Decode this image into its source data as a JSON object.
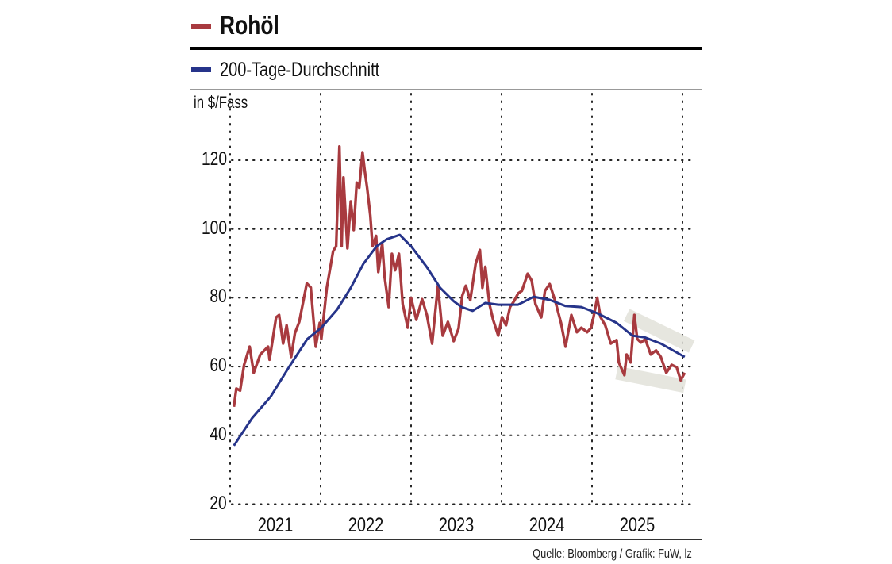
{
  "chart_data": {
    "type": "line",
    "title": "Rohöl",
    "ylabel": "in $/Fass",
    "ylim": [
      20,
      130
    ],
    "yticks": [
      20,
      40,
      60,
      80,
      100,
      120
    ],
    "xticks": [
      "2021",
      "2022",
      "2023",
      "2024",
      "2025"
    ],
    "grid": true,
    "grid_style": "dotted",
    "legend_position": "top-left",
    "source": "Quelle: Bloomberg / Grafik: FuW, lz",
    "colors": {
      "price": "#a83a3f",
      "ma": "#26348a",
      "band": "#e2e2da"
    },
    "series": [
      {
        "name": "Rohöl",
        "points": [
          [
            "2021-01-16",
            48.3
          ],
          [
            "2021-01-26",
            53.6
          ],
          [
            "2021-02-11",
            53
          ],
          [
            "2021-02-27",
            60.5
          ],
          [
            "2021-03-19",
            65.8
          ],
          [
            "2021-04-05",
            58.2
          ],
          [
            "2021-05-01",
            63.5
          ],
          [
            "2021-06-02",
            65.8
          ],
          [
            "2021-06-08",
            62
          ],
          [
            "2021-07-04",
            74.3
          ],
          [
            "2021-07-16",
            75
          ],
          [
            "2021-08-02",
            66.7
          ],
          [
            "2021-08-16",
            72
          ],
          [
            "2021-09-04",
            62.8
          ],
          [
            "2021-09-19",
            69.7
          ],
          [
            "2021-10-06",
            73
          ],
          [
            "2021-11-06",
            84.2
          ],
          [
            "2021-11-22",
            83
          ],
          [
            "2021-12-12",
            65.8
          ],
          [
            "2021-12-28",
            72.7
          ],
          [
            "2022-01-04",
            68
          ],
          [
            "2022-01-26",
            82.9
          ],
          [
            "2022-02-21",
            93.5
          ],
          [
            "2022-03-03",
            95
          ],
          [
            "2022-03-16",
            124
          ],
          [
            "2022-03-25",
            95
          ],
          [
            "2022-04-02",
            115
          ],
          [
            "2022-04-18",
            94.4
          ],
          [
            "2022-05-01",
            108
          ],
          [
            "2022-05-13",
            99.7
          ],
          [
            "2022-05-25",
            113.5
          ],
          [
            "2022-06-05",
            112
          ],
          [
            "2022-06-18",
            122.3
          ],
          [
            "2022-06-27",
            117
          ],
          [
            "2022-07-06",
            112
          ],
          [
            "2022-07-19",
            104
          ],
          [
            "2022-07-28",
            95
          ],
          [
            "2022-08-12",
            98
          ],
          [
            "2022-08-21",
            87.5
          ],
          [
            "2022-09-06",
            95.8
          ],
          [
            "2022-09-16",
            86
          ],
          [
            "2022-10-02",
            77.3
          ],
          [
            "2022-10-15",
            92.8
          ],
          [
            "2022-10-28",
            88
          ],
          [
            "2022-11-13",
            92.8
          ],
          [
            "2022-11-28",
            78.2
          ],
          [
            "2022-12-18",
            71.3
          ],
          [
            "2023-01-01",
            80
          ],
          [
            "2023-01-22",
            73.6
          ],
          [
            "2023-02-15",
            79.6
          ],
          [
            "2023-03-04",
            75
          ],
          [
            "2023-03-25",
            66.7
          ],
          [
            "2023-04-18",
            83.5
          ],
          [
            "2023-05-07",
            69
          ],
          [
            "2023-05-28",
            73
          ],
          [
            "2023-06-21",
            67.4
          ],
          [
            "2023-07-10",
            71
          ],
          [
            "2023-07-25",
            80.6
          ],
          [
            "2023-08-09",
            83.5
          ],
          [
            "2023-08-27",
            79.3
          ],
          [
            "2023-09-18",
            89.8
          ],
          [
            "2023-10-05",
            93.9
          ],
          [
            "2023-10-15",
            82.9
          ],
          [
            "2023-10-27",
            89
          ],
          [
            "2023-11-13",
            78.2
          ],
          [
            "2023-11-28",
            73.6
          ],
          [
            "2023-12-18",
            69
          ],
          [
            "2024-01-03",
            74.4
          ],
          [
            "2024-01-19",
            72
          ],
          [
            "2024-02-05",
            77.3
          ],
          [
            "2024-02-21",
            79
          ],
          [
            "2024-03-07",
            81.3
          ],
          [
            "2024-03-22",
            82
          ],
          [
            "2024-04-15",
            87
          ],
          [
            "2024-05-01",
            85
          ],
          [
            "2024-05-16",
            78.2
          ],
          [
            "2024-06-09",
            74.3
          ],
          [
            "2024-06-24",
            82
          ],
          [
            "2024-07-13",
            84
          ],
          [
            "2024-08-05",
            79
          ],
          [
            "2024-08-28",
            72.7
          ],
          [
            "2024-09-16",
            65.8
          ],
          [
            "2024-10-09",
            75
          ],
          [
            "2024-10-31",
            70
          ],
          [
            "2024-11-19",
            71.3
          ],
          [
            "2024-12-12",
            70
          ],
          [
            "2024-12-28",
            71.3
          ],
          [
            "2025-01-07",
            74.4
          ],
          [
            "2025-01-22",
            80
          ],
          [
            "2025-02-05",
            74.4
          ],
          [
            "2025-02-24",
            72
          ],
          [
            "2025-03-16",
            66.7
          ],
          [
            "2025-04-09",
            67.7
          ],
          [
            "2025-04-18",
            61.2
          ],
          [
            "2025-05-10",
            57.5
          ],
          [
            "2025-05-19",
            63.5
          ],
          [
            "2025-06-05",
            61.2
          ],
          [
            "2025-06-20",
            75
          ],
          [
            "2025-07-01",
            68
          ],
          [
            "2025-07-16",
            67
          ],
          [
            "2025-08-03",
            68
          ],
          [
            "2025-08-25",
            63.5
          ],
          [
            "2025-09-16",
            64.7
          ],
          [
            "2025-10-05",
            62.8
          ],
          [
            "2025-10-27",
            58.2
          ],
          [
            "2025-11-18",
            60.5
          ],
          [
            "2025-12-08",
            59.8
          ],
          [
            "2025-12-24",
            56
          ],
          [
            "2026-01-10",
            58.2
          ]
        ]
      },
      {
        "name": "200-Tage-Durchschnitt",
        "points": [
          [
            "2021-01-16",
            37
          ],
          [
            "2021-03-29",
            45
          ],
          [
            "2021-06-13",
            51.3
          ],
          [
            "2021-08-25",
            59.8
          ],
          [
            "2021-11-08",
            68
          ],
          [
            "2022-01-04",
            71.3
          ],
          [
            "2022-03-07",
            76.6
          ],
          [
            "2022-05-01",
            82.9
          ],
          [
            "2022-06-21",
            89.8
          ],
          [
            "2022-08-14",
            95
          ],
          [
            "2022-09-24",
            97
          ],
          [
            "2022-11-16",
            98.3
          ],
          [
            "2023-01-01",
            95
          ],
          [
            "2023-03-04",
            88.9
          ],
          [
            "2023-04-27",
            82.9
          ],
          [
            "2023-06-21",
            79
          ],
          [
            "2023-07-22",
            77.3
          ],
          [
            "2023-09-06",
            76.2
          ],
          [
            "2023-10-27",
            78.5
          ],
          [
            "2023-12-18",
            78
          ],
          [
            "2024-03-07",
            78
          ],
          [
            "2024-05-09",
            80.3
          ],
          [
            "2024-07-13",
            79.4
          ],
          [
            "2024-09-16",
            77.6
          ],
          [
            "2024-11-19",
            77.3
          ],
          [
            "2025-01-22",
            75.5
          ],
          [
            "2025-04-09",
            72.7
          ],
          [
            "2025-06-12",
            69
          ],
          [
            "2025-07-31",
            68.5
          ],
          [
            "2025-10-05",
            66.7
          ],
          [
            "2026-01-10",
            62.8
          ]
        ]
      }
    ],
    "trend_channel": {
      "upper": [
        [
          "2025-05-19",
          75
        ],
        [
          "2026-02-08",
          65.8
        ]
      ],
      "lower": [
        [
          "2025-04-09",
          58.2
        ],
        [
          "2026-01-10",
          54.3
        ]
      ]
    }
  }
}
